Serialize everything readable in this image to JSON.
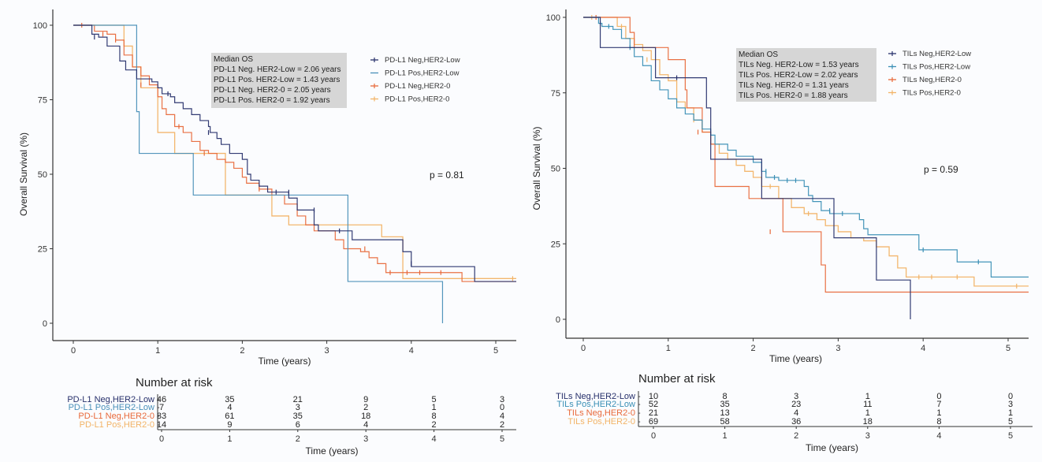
{
  "chart_data": [
    {
      "type": "line",
      "subtype": "kaplan-meier",
      "title": "",
      "xlabel": "Time (years)",
      "ylabel": "Overall Survival (%)",
      "xlim": [
        0,
        5.25
      ],
      "ylim": [
        0,
        100
      ],
      "xticks": [
        0,
        1,
        2,
        3,
        4,
        5
      ],
      "yticks": [
        0,
        25,
        50,
        75,
        100
      ],
      "grid": false,
      "legend_position": "top-right",
      "pvalue_text": "p = 0.81",
      "median_box": {
        "title": "Median OS",
        "lines": [
          "PD-L1 Neg. HER2-Low = 2.06 years",
          "PD-L1 Pos. HER2-Low = 1.43 years",
          "PD-L1 Neg. HER2-0 = 2.05 years",
          "PD-L1 Pos. HER2-0 = 1.92 years"
        ]
      },
      "series": [
        {
          "name": "PD-L1 Neg,HER2-Low",
          "risk_label": "PD-L1 Neg,HER2-Low",
          "color": "#27306b",
          "steps": [
            [
              0.2,
              100
            ],
            [
              0.22,
              97
            ],
            [
              0.3,
              96
            ],
            [
              0.4,
              93
            ],
            [
              0.55,
              88
            ],
            [
              0.62,
              85
            ],
            [
              0.75,
              82
            ],
            [
              0.93,
              81
            ],
            [
              1.0,
              79
            ],
            [
              1.05,
              77
            ],
            [
              1.15,
              76
            ],
            [
              1.2,
              74
            ],
            [
              1.3,
              72
            ],
            [
              1.4,
              70
            ],
            [
              1.5,
              68
            ],
            [
              1.6,
              66
            ],
            [
              1.62,
              64
            ],
            [
              1.7,
              62
            ],
            [
              1.75,
              60
            ],
            [
              1.85,
              57
            ],
            [
              2.0,
              55
            ],
            [
              2.06,
              50
            ],
            [
              2.1,
              48
            ],
            [
              2.2,
              46
            ],
            [
              2.3,
              44
            ],
            [
              2.55,
              42
            ],
            [
              2.65,
              38
            ],
            [
              2.85,
              33
            ],
            [
              2.9,
              31
            ],
            [
              3.3,
              28
            ],
            [
              3.9,
              24
            ],
            [
              4.0,
              19
            ],
            [
              4.75,
              14
            ]
          ],
          "censor": [
            [
              0.25,
              96
            ],
            [
              1.12,
              77
            ],
            [
              1.6,
              64
            ],
            [
              2.4,
              44
            ],
            [
              2.55,
              44
            ],
            [
              2.85,
              38
            ],
            [
              3.15,
              31
            ],
            [
              4.0,
              20
            ]
          ]
        },
        {
          "name": "PD-L1 Pos,HER2-Low",
          "risk_label": "PD-L1 Pos,HER2-Low",
          "color": "#4a90b8",
          "steps": [
            [
              0.75,
              71
            ],
            [
              0.78,
              57
            ],
            [
              1.42,
              43
            ],
            [
              3.25,
              14
            ],
            [
              4.37,
              0
            ]
          ],
          "censor": []
        },
        {
          "name": "PD-L1 Neg,HER2-0",
          "risk_label": "PD-L1 Neg,HER2-0",
          "color": "#e8693a",
          "steps": [
            [
              0.25,
              98
            ],
            [
              0.4,
              97
            ],
            [
              0.5,
              95
            ],
            [
              0.6,
              90
            ],
            [
              0.7,
              86
            ],
            [
              0.8,
              83
            ],
            [
              0.9,
              80
            ],
            [
              1.0,
              76
            ],
            [
              1.05,
              72
            ],
            [
              1.1,
              70
            ],
            [
              1.2,
              66
            ],
            [
              1.3,
              64
            ],
            [
              1.4,
              61
            ],
            [
              1.5,
              58
            ],
            [
              1.6,
              57
            ],
            [
              1.7,
              55
            ],
            [
              1.8,
              54
            ],
            [
              1.9,
              52
            ],
            [
              2.0,
              49
            ],
            [
              2.05,
              47
            ],
            [
              2.2,
              45
            ],
            [
              2.35,
              43
            ],
            [
              2.5,
              40
            ],
            [
              2.65,
              36
            ],
            [
              2.75,
              33
            ],
            [
              2.85,
              31
            ],
            [
              3.1,
              28
            ],
            [
              3.2,
              25
            ],
            [
              3.4,
              24
            ],
            [
              3.5,
              22
            ],
            [
              3.6,
              20
            ],
            [
              3.7,
              17
            ],
            [
              4.6,
              14
            ]
          ],
          "censor": [
            [
              0.1,
              100
            ],
            [
              0.35,
              97
            ],
            [
              0.5,
              95
            ],
            [
              0.8,
              80
            ],
            [
              1.25,
              66
            ],
            [
              1.55,
              57
            ],
            [
              2.2,
              45
            ],
            [
              3.45,
              25
            ],
            [
              3.75,
              17
            ],
            [
              3.95,
              17
            ],
            [
              4.1,
              17
            ],
            [
              4.35,
              17
            ]
          ]
        },
        {
          "name": "PD-L1 Pos,HER2-0",
          "risk_label": "PD-L1 Pos,HER2-0",
          "color": "#f2b366",
          "steps": [
            [
              0.45,
              100
            ],
            [
              0.5,
              100
            ],
            [
              0.6,
              93
            ],
            [
              0.7,
              86
            ],
            [
              0.8,
              79
            ],
            [
              1.0,
              64
            ],
            [
              1.2,
              57
            ],
            [
              1.8,
              43
            ],
            [
              2.35,
              36
            ],
            [
              2.55,
              33
            ],
            [
              3.65,
              29
            ],
            [
              3.9,
              15
            ]
          ],
          "censor": [
            [
              5.2,
              15
            ]
          ]
        }
      ],
      "risk_table": {
        "title": "Number at risk",
        "xlabel": "Time (years)",
        "times": [
          0,
          1,
          2,
          3,
          4,
          5
        ],
        "rows": [
          {
            "label": "PD-L1 Neg,HER2-Low",
            "values": [
              46,
              35,
              21,
              9,
              5,
              3
            ]
          },
          {
            "label": "PD-L1 Pos,HER2-Low",
            "values": [
              7,
              4,
              3,
              2,
              1,
              0
            ]
          },
          {
            "label": "PD-L1 Neg,HER2-0",
            "values": [
              83,
              61,
              35,
              18,
              8,
              4
            ]
          },
          {
            "label": "PD-L1 Pos,HER2-0",
            "values": [
              14,
              9,
              6,
              4,
              2,
              2
            ]
          }
        ]
      }
    },
    {
      "type": "line",
      "subtype": "kaplan-meier",
      "title": "",
      "xlabel": "Time (years)",
      "ylabel": "Overall Survival (%)",
      "xlim": [
        0,
        5.25
      ],
      "ylim": [
        0,
        100
      ],
      "xticks": [
        0,
        1,
        2,
        3,
        4,
        5
      ],
      "yticks": [
        0,
        25,
        50,
        75,
        100
      ],
      "grid": false,
      "legend_position": "top-right",
      "pvalue_text": "p = 0.59",
      "median_box": {
        "title": "Median OS",
        "lines": [
          "TILs Neg. HER2-Low = 1.53 years",
          "TILs Pos. HER2-Low = 2.02 years",
          "TILs Neg. HER2-0 = 1.31 years",
          "TILs Pos. HER2-0 = 1.88 years"
        ]
      },
      "series": [
        {
          "name": "TILs Neg,HER2-Low",
          "risk_label": "TILs Neg,HER2-Low",
          "color": "#27306b",
          "steps": [
            [
              0.2,
              90
            ],
            [
              0.85,
              80
            ],
            [
              1.45,
              70
            ],
            [
              1.5,
              53
            ],
            [
              2.1,
              40
            ],
            [
              2.95,
              27
            ],
            [
              3.45,
              13
            ],
            [
              3.85,
              0
            ]
          ],
          "censor": [
            [
              1.1,
              80
            ]
          ]
        },
        {
          "name": "TILs Pos,HER2-Low",
          "risk_label": "TILs Pos,HER2-Low",
          "color": "#3a8fb5",
          "steps": [
            [
              0.18,
              98
            ],
            [
              0.22,
              97
            ],
            [
              0.35,
              96
            ],
            [
              0.45,
              93
            ],
            [
              0.55,
              90
            ],
            [
              0.6,
              87
            ],
            [
              0.7,
              84
            ],
            [
              0.8,
              79
            ],
            [
              0.9,
              76
            ],
            [
              1.0,
              73
            ],
            [
              1.1,
              70
            ],
            [
              1.2,
              68
            ],
            [
              1.3,
              66
            ],
            [
              1.4,
              63
            ],
            [
              1.5,
              61
            ],
            [
              1.55,
              58
            ],
            [
              1.7,
              56
            ],
            [
              1.8,
              54
            ],
            [
              2.0,
              52
            ],
            [
              2.1,
              49
            ],
            [
              2.15,
              47
            ],
            [
              2.3,
              46
            ],
            [
              2.6,
              44
            ],
            [
              2.65,
              41
            ],
            [
              2.7,
              39
            ],
            [
              2.8,
              36
            ],
            [
              2.9,
              35
            ],
            [
              3.25,
              33
            ],
            [
              3.3,
              30
            ],
            [
              3.35,
              28
            ],
            [
              3.95,
              23
            ],
            [
              4.4,
              19
            ],
            [
              4.8,
              14
            ]
          ],
          "censor": [
            [
              0.2,
              98
            ],
            [
              0.3,
              97
            ],
            [
              0.55,
              90
            ],
            [
              2.15,
              49
            ],
            [
              2.25,
              47
            ],
            [
              2.4,
              46
            ],
            [
              2.5,
              46
            ],
            [
              2.9,
              36
            ],
            [
              3.05,
              35
            ],
            [
              4.0,
              23
            ],
            [
              4.65,
              19
            ]
          ]
        },
        {
          "name": "TILs Neg,HER2-0",
          "risk_label": "TILs Neg,HER2-0",
          "color": "#e8693a",
          "steps": [
            [
              0.25,
              100
            ],
            [
              0.55,
              95
            ],
            [
              0.6,
              90
            ],
            [
              1.0,
              86
            ],
            [
              1.2,
              76
            ],
            [
              1.22,
              70
            ],
            [
              1.4,
              62
            ],
            [
              1.5,
              58
            ],
            [
              1.55,
              44
            ],
            [
              1.95,
              40
            ],
            [
              2.35,
              29
            ],
            [
              2.8,
              18
            ],
            [
              2.85,
              9
            ]
          ],
          "censor": [
            [
              0.15,
              100
            ],
            [
              1.35,
              62
            ],
            [
              2.2,
              29
            ]
          ]
        },
        {
          "name": "TILs Pos,HER2-0",
          "risk_label": "TILs Pos,HER2-0",
          "color": "#f2b366",
          "steps": [
            [
              0.3,
              100
            ],
            [
              0.4,
              97
            ],
            [
              0.5,
              93
            ],
            [
              0.6,
              91
            ],
            [
              0.7,
              89
            ],
            [
              0.8,
              86
            ],
            [
              0.9,
              81
            ],
            [
              1.0,
              79
            ],
            [
              1.1,
              72
            ],
            [
              1.2,
              70
            ],
            [
              1.3,
              66
            ],
            [
              1.4,
              62
            ],
            [
              1.5,
              58
            ],
            [
              1.6,
              55
            ],
            [
              1.7,
              53
            ],
            [
              1.8,
              51
            ],
            [
              1.9,
              49
            ],
            [
              2.0,
              47
            ],
            [
              2.1,
              44
            ],
            [
              2.3,
              40
            ],
            [
              2.45,
              37
            ],
            [
              2.6,
              35
            ],
            [
              2.75,
              33
            ],
            [
              2.85,
              31
            ],
            [
              3.0,
              29
            ],
            [
              3.15,
              27
            ],
            [
              3.3,
              26
            ],
            [
              3.45,
              24
            ],
            [
              3.6,
              21
            ],
            [
              3.7,
              17
            ],
            [
              3.8,
              14
            ],
            [
              4.6,
              11
            ]
          ],
          "censor": [
            [
              0.1,
              100
            ],
            [
              0.45,
              97
            ],
            [
              0.75,
              86
            ],
            [
              1.3,
              66
            ],
            [
              2.2,
              44
            ],
            [
              2.65,
              35
            ],
            [
              3.95,
              14
            ],
            [
              4.1,
              14
            ],
            [
              4.4,
              14
            ],
            [
              5.1,
              11
            ]
          ]
        }
      ],
      "risk_table": {
        "title": "Number at risk",
        "xlabel": "Time (years)",
        "times": [
          0,
          1,
          2,
          3,
          4,
          5
        ],
        "rows": [
          {
            "label": "TILs Neg,HER2-Low",
            "values": [
              10,
              8,
              3,
              1,
              0,
              0
            ]
          },
          {
            "label": "TILs Pos,HER2-Low",
            "values": [
              52,
              35,
              23,
              11,
              7,
              3
            ]
          },
          {
            "label": "TILs Neg,HER2-0",
            "values": [
              21,
              13,
              4,
              1,
              1,
              1
            ]
          },
          {
            "label": "TILs Pos,HER2-0",
            "values": [
              69,
              58,
              36,
              18,
              8,
              5
            ]
          }
        ]
      }
    }
  ]
}
